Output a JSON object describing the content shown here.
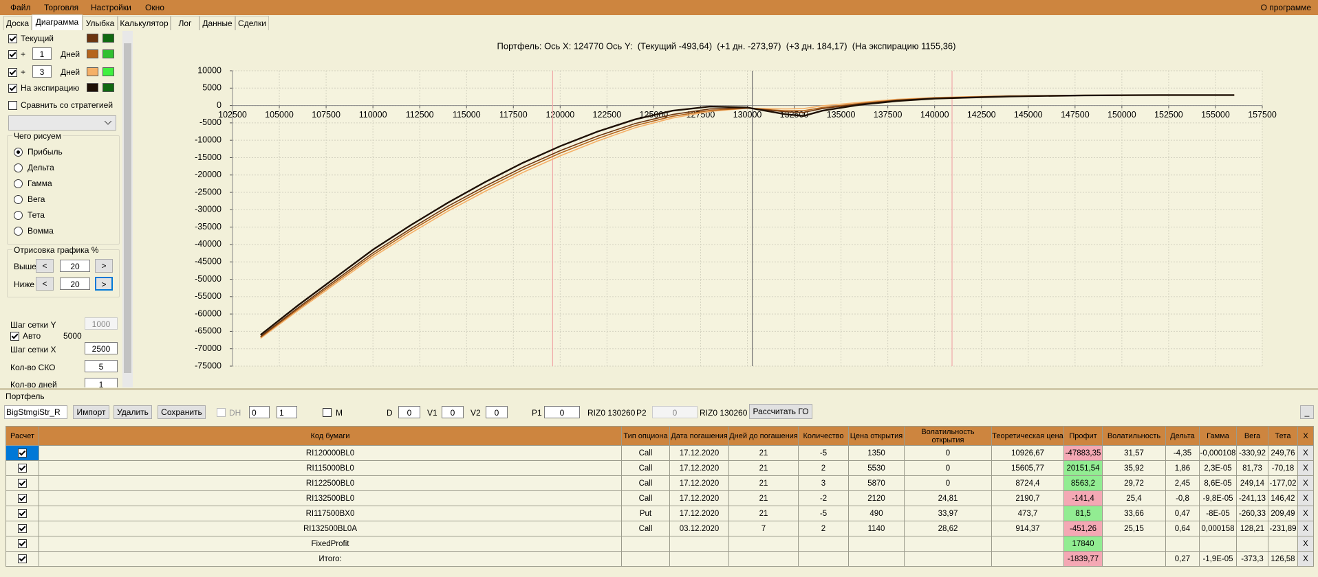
{
  "menu": [
    "Файл",
    "Торговля",
    "Настройки",
    "Окно"
  ],
  "about": "О программе",
  "tabs": [
    "Доска",
    "Диаграмма",
    "Улыбка",
    "Калькулятор",
    "Лог",
    "Данные",
    "Сделки"
  ],
  "left": {
    "plus": "+",
    "days_label": "Дней",
    "days1": "1",
    "days3": "3",
    "compare": "Сравнить со стратегией",
    "what_title": "Чего рисуем",
    "what_options": [
      "Прибыль",
      "Дельта",
      "Гамма",
      "Вега",
      "Тета",
      "Вомма"
    ],
    "draw_title": "Отрисовка графика %",
    "above": "Выше",
    "below": "Ниже",
    "above_value": "20",
    "below_value": "20",
    "lt": "<",
    "gt": ">",
    "grid_y": "Шаг сетки Y",
    "grid_y_value": "1000",
    "auto": "Авто",
    "auto_value": "5000",
    "grid_x": "Шаг сетки X",
    "grid_x_value": "2500",
    "sko": "Кол-во СКО",
    "sko_value": "5",
    "days_count": "Кол-во дней",
    "days_count_value": "1"
  },
  "chart_data": {
    "type": "line",
    "title": "Портфель: Ось X: 124770 Ось Y:  (Текущий -493,64)  (+1 дн. -273,97)  (+3 дн. 184,17)  (На экспирацию 1155,36)",
    "x": [
      104000,
      106000,
      108000,
      110000,
      112000,
      114000,
      116000,
      118000,
      120000,
      122000,
      124000,
      126000,
      128000,
      130000,
      132000,
      133000,
      134000,
      136000,
      138000,
      140000,
      144000,
      148000,
      152000,
      156000
    ],
    "series": [
      {
        "name": "Текущий",
        "color": "#6b3510",
        "values": [
          -66500,
          -58200,
          -50300,
          -42400,
          -35500,
          -29000,
          -23200,
          -17800,
          -13000,
          -8800,
          -5200,
          -2600,
          -1000,
          -700,
          -1800,
          -2000,
          -900,
          400,
          1500,
          2100,
          2700,
          2900,
          3000,
          3000
        ]
      },
      {
        "color": "#b5651d",
        "values": [
          -66700,
          -58600,
          -50800,
          -43000,
          -36100,
          -29700,
          -23900,
          -18500,
          -13700,
          -9500,
          -5800,
          -3100,
          -1400,
          -800,
          -1500,
          -1500,
          -600,
          600,
          1600,
          2200,
          2700,
          2900,
          3000,
          3000
        ]
      },
      {
        "color": "#f5b068",
        "values": [
          -67000,
          -59000,
          -51300,
          -43600,
          -36800,
          -30400,
          -24700,
          -19300,
          -14500,
          -10200,
          -6400,
          -3600,
          -1700,
          -800,
          -1000,
          -900,
          -100,
          900,
          1800,
          2300,
          2800,
          2950,
          3000,
          3000
        ]
      },
      {
        "name": "На экспирацию",
        "color": "#1e1005",
        "values": [
          -66000,
          -57500,
          -49500,
          -41500,
          -34500,
          -28000,
          -22000,
          -16500,
          -11700,
          -7500,
          -4000,
          -1500,
          -300,
          -600,
          -2500,
          -3000,
          -1500,
          200,
          1300,
          2000,
          2600,
          2900,
          3000,
          3000
        ]
      }
    ],
    "xlim": [
      102500,
      157500
    ],
    "ylim": [
      -75000,
      10000
    ],
    "xticks": [
      102500,
      105000,
      107500,
      110000,
      112500,
      115000,
      117500,
      120000,
      122500,
      125000,
      127500,
      130000,
      132500,
      135000,
      137500,
      140000,
      142500,
      145000,
      147500,
      150000,
      152500,
      155000,
      157500
    ],
    "yticks": [
      10000,
      5000,
      0,
      -5000,
      -10000,
      -15000,
      -20000,
      -25000,
      -30000,
      -35000,
      -40000,
      -45000,
      -50000,
      -55000,
      -60000,
      -65000,
      -70000,
      -75000
    ],
    "grid": true,
    "vlines": [
      {
        "value": 119600,
        "color": "#f0a8a8"
      },
      {
        "value": 130260,
        "color": "#707070"
      },
      {
        "value": 140930,
        "color": "#f0a8a8"
      }
    ]
  },
  "portfolio": {
    "title": "Портфель",
    "strategy": "BigStmgiStr_R",
    "import": "Импорт",
    "delete": "Удалить",
    "save": "Сохранить",
    "dh": "DH",
    "n1": "0",
    "n2": "1",
    "m": "M",
    "d": "D",
    "d_value": "0",
    "v1": "V1",
    "v1_value": "0",
    "v2": "V2",
    "v2_value": "0",
    "p1": "P1",
    "p1_value": "0",
    "p1_code": "RIZ0 130260",
    "p2": "P2",
    "p2_value": "0",
    "p2_code": "RIZ0 130260",
    "calc": "Рассчитать ГО",
    "min": "_"
  },
  "table": {
    "columns": [
      "Расчет",
      "Код бумаги",
      "Тип опциона",
      "Дата погашения",
      "Дней до погашения",
      "Количество",
      "Цена открытия",
      "Волатильность открытия",
      "Теоретическая цена",
      "Профит",
      "Волатильность",
      "Дельта",
      "Гамма",
      "Вега",
      "Тета",
      "X"
    ],
    "rows": [
      [
        "RI120000BL0",
        "Call",
        "17.12.2020",
        "21",
        "-5",
        "1350",
        "0",
        "10926,67",
        "-47883,35",
        "31,57",
        "-4,35",
        "-0,000108",
        "-330,92",
        "249,76",
        "X"
      ],
      [
        "RI115000BL0",
        "Call",
        "17.12.2020",
        "21",
        "2",
        "5530",
        "0",
        "15605,77",
        "20151,54",
        "35,92",
        "1,86",
        "2,3E-05",
        "81,73",
        "-70,18",
        "X"
      ],
      [
        "RI122500BL0",
        "Call",
        "17.12.2020",
        "21",
        "3",
        "5870",
        "0",
        "8724,4",
        "8563,2",
        "29,72",
        "2,45",
        "8,6E-05",
        "249,14",
        "-177,02",
        "X"
      ],
      [
        "RI132500BL0",
        "Call",
        "17.12.2020",
        "21",
        "-2",
        "2120",
        "24,81",
        "2190,7",
        "-141,4",
        "25,4",
        "-0,8",
        "-9,8E-05",
        "-241,13",
        "146,42",
        "X"
      ],
      [
        "RI117500BX0",
        "Put",
        "17.12.2020",
        "21",
        "-5",
        "490",
        "33,97",
        "473,7",
        "81,5",
        "33,66",
        "0,47",
        "-8E-05",
        "-260,33",
        "209,49",
        "X"
      ],
      [
        "RI132500BL0A",
        "Call",
        "03.12.2020",
        "7",
        "2",
        "1140",
        "28,62",
        "914,37",
        "-451,26",
        "25,15",
        "0,64",
        "0,000158",
        "128,21",
        "-231,89",
        "X"
      ],
      [
        "FixedProfit",
        null,
        null,
        null,
        null,
        null,
        null,
        null,
        "17840",
        null,
        null,
        null,
        null,
        null,
        "X"
      ],
      [
        "Итого:",
        null,
        null,
        null,
        null,
        null,
        null,
        null,
        "-1839,77",
        null,
        "0,27",
        "-1,9E-05",
        "-373,3",
        "126,58",
        "X"
      ]
    ]
  }
}
